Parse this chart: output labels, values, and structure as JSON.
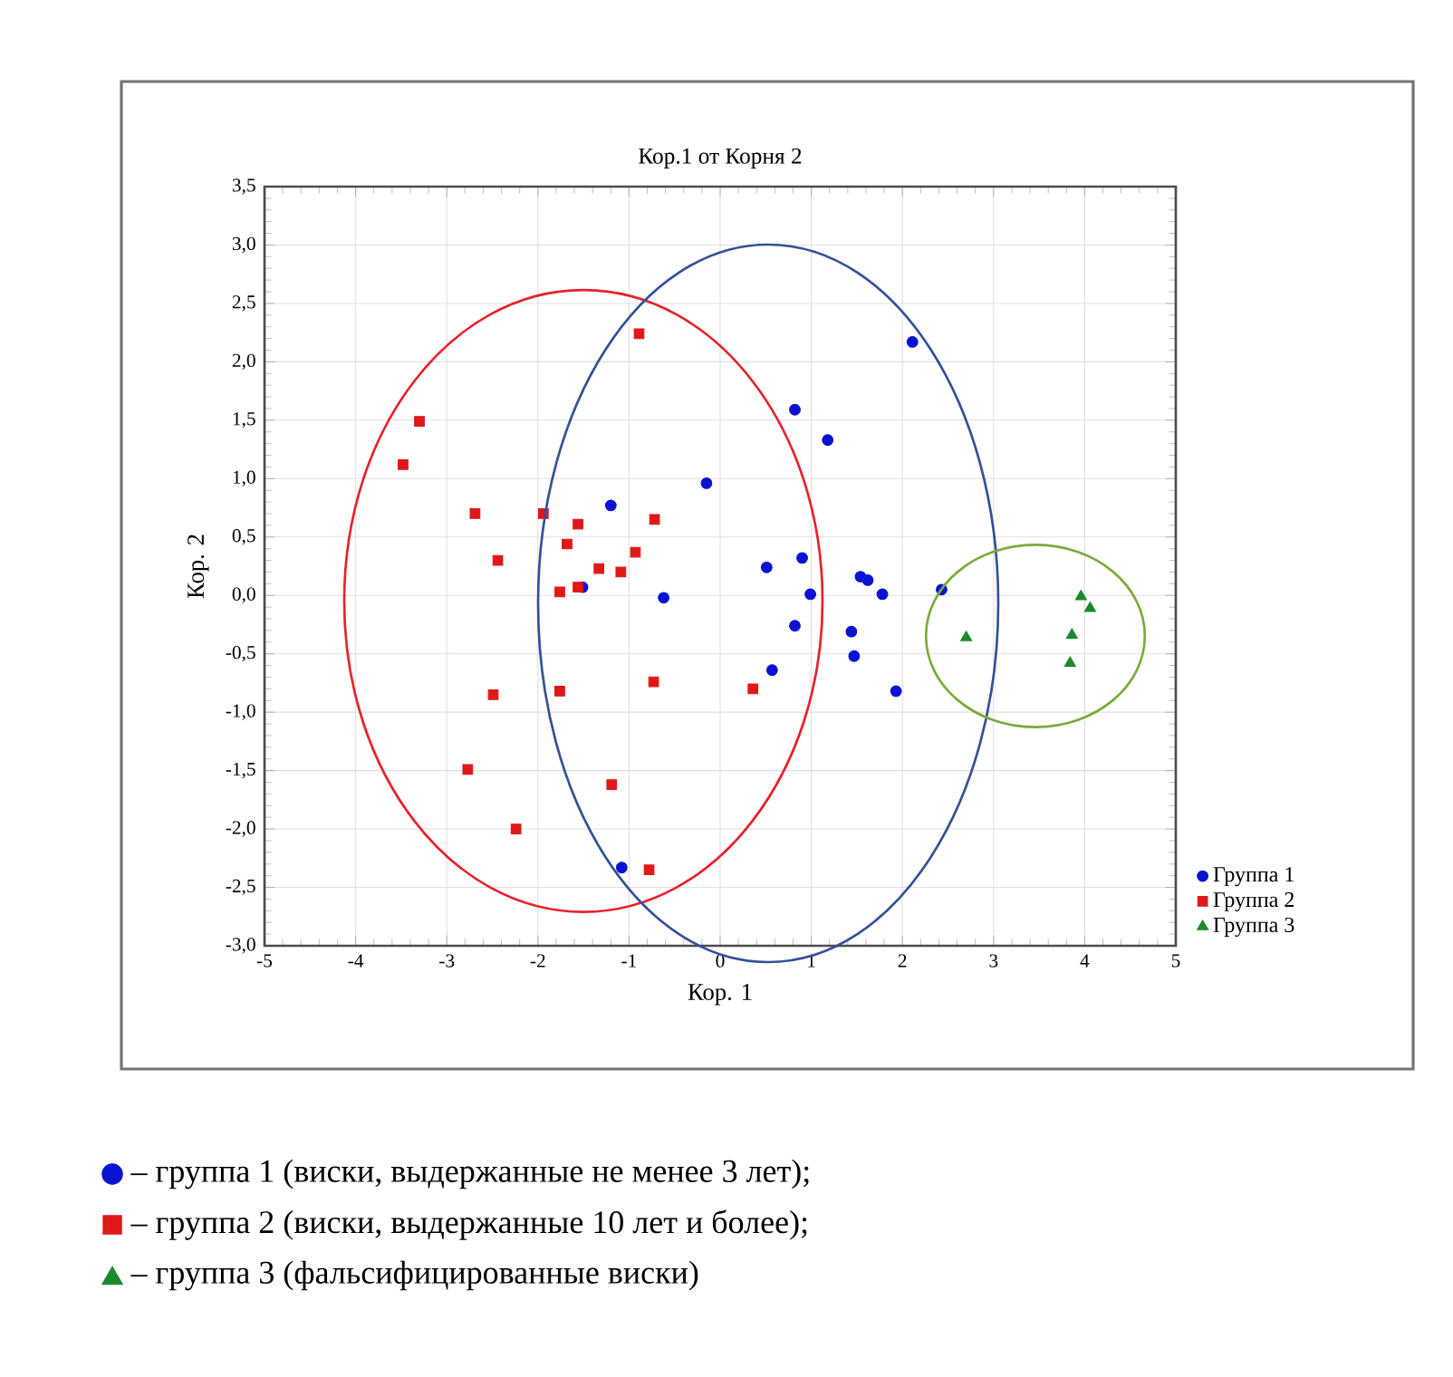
{
  "chart_data": {
    "type": "scatter",
    "title": "Кор.1 от Корня 2",
    "xlabel": "Кор. 1",
    "ylabel": "Кор. 2",
    "xlim": [
      -5,
      5
    ],
    "ylim": [
      -3,
      3.5
    ],
    "xticks": [
      -5,
      -4,
      -3,
      -2,
      -1,
      0,
      1,
      2,
      3,
      4,
      5
    ],
    "yticks": [
      {
        "value": -3,
        "label": "-3,0"
      },
      {
        "value": -2.5,
        "label": "-2,5"
      },
      {
        "value": -2,
        "label": "-2,0"
      },
      {
        "value": -1.5,
        "label": "-1,5"
      },
      {
        "value": -1,
        "label": "-1,0"
      },
      {
        "value": -0.5,
        "label": "-0,5"
      },
      {
        "value": 0,
        "label": "0,0"
      },
      {
        "value": 0.5,
        "label": "0,5"
      },
      {
        "value": 1,
        "label": "1,0"
      },
      {
        "value": 1.5,
        "label": "1,5"
      },
      {
        "value": 2,
        "label": "2,0"
      },
      {
        "value": 2.5,
        "label": "2,5"
      },
      {
        "value": 3,
        "label": "3,0"
      },
      {
        "value": 3.5,
        "label": "3,5"
      }
    ],
    "grid": true,
    "legend": "bottom right",
    "series": [
      {
        "name": "Группа 1",
        "color": "#0a14d0",
        "marker": "circle",
        "x": [
          -1.2,
          -0.15,
          -0.62,
          -1.51,
          -1.08,
          2.11,
          0.82,
          1.18,
          0.9,
          0.51,
          1.54,
          1.62,
          1.78,
          0.99,
          2.43,
          0.82,
          1.44,
          1.47,
          0.57,
          1.93
        ],
        "values": [
          0.77,
          0.96,
          -0.02,
          0.07,
          -2.33,
          2.17,
          1.59,
          1.33,
          0.32,
          0.24,
          0.16,
          0.13,
          0.01,
          0.01,
          0.05,
          -0.26,
          -0.31,
          -0.52,
          -0.64,
          -0.82
        ]
      },
      {
        "name": "Группа 2",
        "color": "#e01818",
        "marker": "square",
        "x": [
          -0.89,
          -3.3,
          -3.48,
          -2.69,
          -1.94,
          -1.56,
          -0.72,
          -1.68,
          -0.93,
          -2.44,
          -1.33,
          -1.09,
          -1.76,
          -1.56,
          -2.49,
          -1.76,
          -0.73,
          -2.77,
          -1.19,
          -2.24,
          -0.78,
          0.36
        ],
        "values": [
          2.24,
          1.49,
          1.12,
          0.7,
          0.7,
          0.61,
          0.65,
          0.44,
          0.37,
          0.3,
          0.23,
          0.2,
          0.03,
          0.07,
          -0.85,
          -0.82,
          -0.74,
          -1.49,
          -1.62,
          -2.0,
          -2.35,
          -0.8
        ]
      },
      {
        "name": "Группа 3",
        "color": "#1a8a2a",
        "marker": "triangle",
        "x": [
          2.7,
          3.96,
          4.06,
          3.86,
          3.84
        ],
        "values": [
          -0.36,
          -0.01,
          -0.11,
          -0.34,
          -0.58
        ]
      }
    ],
    "annotations": [
      "– группа 1 (виски, выдержанные не менее 3 лет);",
      "– группа 2 (виски, выдержанные 10 лет и более);",
      "– группа 3 (фальсифицированные виски)"
    ]
  }
}
